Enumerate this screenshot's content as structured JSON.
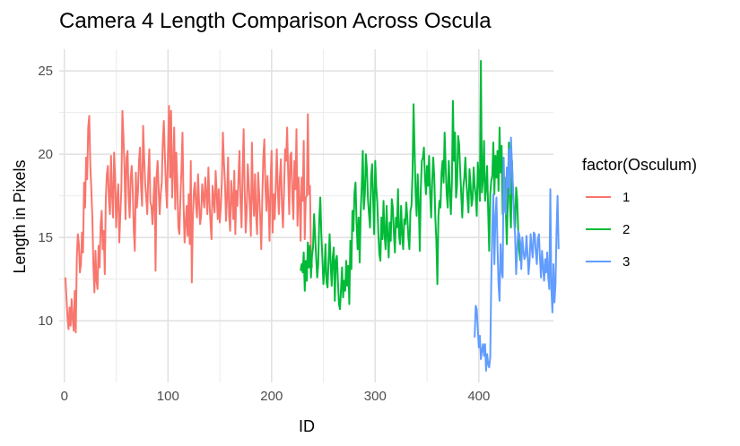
{
  "chart_data": {
    "type": "line",
    "title": "Camera 4 Length Comparison Across Oscula",
    "xlabel": "ID",
    "ylabel": "Length in Pixels",
    "xlim": [
      -5,
      472
    ],
    "ylim": [
      6.3,
      26.3
    ],
    "x_ticks": [
      0,
      100,
      200,
      300,
      400
    ],
    "y_ticks": [
      10,
      15,
      20,
      25
    ],
    "x_tick_labels": [
      "0",
      "100",
      "200",
      "300",
      "400"
    ],
    "y_tick_labels": [
      "10",
      "15",
      "20",
      "25"
    ],
    "grid": true,
    "legend": {
      "title": "factor(Osculum)",
      "position": "right",
      "entries": [
        "1",
        "2",
        "3"
      ]
    },
    "series": [
      {
        "name": "1",
        "color": "#F8766D",
        "x_start": 1,
        "values": [
          12.6,
          11.4,
          10.2,
          9.5,
          10.8,
          9.7,
          11.3,
          10.1,
          9.4,
          11.8,
          9.3,
          13.8,
          15.2,
          14.6,
          12.9,
          13.4,
          15.3,
          14.1,
          18.3,
          16.8,
          19.8,
          18.5,
          21.6,
          22.3,
          19.4,
          17.9,
          16.2,
          13.3,
          11.7,
          14.2,
          12.4,
          11.9,
          14.5,
          13.2,
          15.8,
          16.6,
          14.3,
          15.4,
          12.8,
          17.4,
          18.8,
          19.3,
          17.2,
          16.4,
          19.9,
          17.6,
          16.2,
          20.1,
          18.5,
          15.6,
          17.3,
          18.2,
          14.7,
          16.4,
          17.9,
          22.6,
          21.1,
          19.2,
          16.1,
          19.8,
          20.2,
          17.5,
          16.2,
          18.6,
          19.3,
          17.8,
          15.4,
          14.2,
          18.9,
          16.8,
          17.7,
          19.6,
          20.4,
          18.1,
          16.9,
          21.7,
          19.8,
          18.2,
          17.4,
          16.4,
          18.9,
          20.3,
          17.1,
          16.9,
          15.8,
          17.3,
          18.6,
          13.0,
          18.7,
          19.6,
          17.9,
          16.4,
          17.6,
          18.3,
          20.8,
          22.0,
          19.9,
          18.1,
          16.8,
          20.2,
          22.9,
          18.6,
          22.6,
          17.4,
          19.3,
          21.6,
          16.7,
          20.1,
          18.3,
          15.6,
          15.2,
          17.4,
          19.1,
          21.3,
          17.1,
          14.7,
          15.8,
          16.9,
          15.1,
          17.6,
          14.6,
          19.6,
          12.3,
          16.1,
          17.8,
          18.3,
          17.0,
          16.2,
          18.8,
          17.1,
          15.8,
          16.3,
          18.2,
          17.4,
          16.8,
          18.6,
          17.6,
          16.4,
          19.2,
          17.2,
          15.9,
          14.9,
          18.1,
          17.3,
          16.5,
          19.0,
          17.7,
          16.1,
          17.9,
          15.9,
          16.8,
          18.4,
          21.3,
          19.5,
          18.3,
          16.0,
          17.4,
          19.8,
          16.3,
          15.4,
          18.4,
          17.4,
          16.1,
          19.0,
          15.2,
          17.8,
          16.9,
          18.6,
          20.2,
          17.1,
          15.6,
          18.8,
          21.5,
          17.9,
          15.3,
          16.6,
          19.4,
          18.2,
          16.8,
          15.1,
          20.7,
          17.5,
          16.3,
          18.8,
          16.4,
          15.2,
          18.9,
          17.6,
          16.2,
          14.3,
          17.4,
          19.8,
          20.9,
          18.1,
          16.6,
          18.7,
          17.2,
          14.8,
          18.3,
          20.2,
          15.3,
          17.6,
          16.1,
          18.1,
          20.3,
          17.9,
          16.4,
          18.6,
          19.7,
          16.9,
          15.6,
          17.8,
          20.3,
          19.6,
          21.6,
          18.8,
          16.4,
          19.9,
          20.1,
          17.5,
          16.1,
          19.6,
          17.9,
          21.5,
          15.7,
          18.6,
          17.3,
          14.8,
          18.6,
          17.2,
          20.8,
          14.9,
          17.4,
          17.5,
          22.4,
          17.6,
          18.1,
          14.1,
          13.2
        ]
      },
      {
        "name": "2",
        "color": "#00BA38",
        "x_start": 228,
        "values": [
          13.0,
          13.4,
          12.9,
          14.1,
          11.8,
          13.6,
          12.4,
          14.7,
          13.2,
          14.5,
          12.6,
          13.9,
          14.4,
          16.4,
          15.1,
          13.8,
          12.6,
          13.4,
          16.1,
          17.4,
          15.2,
          13.8,
          12.2,
          13.0,
          14.6,
          12.3,
          12.0,
          13.6,
          15.2,
          13.4,
          12.1,
          13.8,
          14.4,
          11.2,
          13.6,
          13.9,
          12.4,
          11.0,
          10.7,
          11.9,
          13.2,
          11.4,
          12.4,
          11.8,
          13.6,
          12.1,
          13.3,
          11.0,
          14.8,
          13.1,
          16.6,
          15.4,
          17.7,
          18.3,
          15.9,
          14.3,
          16.2,
          13.5,
          16.5,
          18.1,
          20.2,
          16.7,
          17.6,
          20.0,
          19.1,
          17.3,
          16.4,
          15.6,
          18.6,
          19.4,
          17.3,
          15.2,
          19.6,
          18.0,
          17.1,
          15.3,
          14.0,
          13.6,
          16.2,
          14.9,
          17.2,
          15.2,
          14.3,
          16.9,
          15.1,
          13.8,
          15.9,
          14.8,
          17.3,
          16.8,
          15.3,
          14.1,
          16.2,
          15.6,
          17.9,
          15.1,
          14.6,
          16.9,
          15.2,
          14.3,
          16.1,
          15.8,
          17.1,
          16.2,
          15.0,
          14.3,
          16.6,
          16.9,
          18.8,
          23.0,
          20.3,
          17.6,
          16.3,
          18.8,
          17.1,
          14.2,
          17.9,
          19.6,
          19.8,
          20.4,
          18.6,
          17.6,
          19.3,
          18.1,
          19.9,
          17.6,
          16.2,
          18.4,
          19.8,
          18.6,
          16.2,
          14.8,
          12.2,
          16.3,
          17.2,
          16.8,
          18.9,
          19.6,
          18.3,
          21.3,
          19.2,
          17.6,
          16.8,
          19.6,
          17.9,
          16.4,
          18.3,
          23.2,
          19.6,
          21.3,
          17.4,
          18.1,
          21.1,
          20.6,
          19.0,
          17.6,
          16.2,
          18.0,
          18.6,
          19.8,
          18.3,
          17.4,
          16.5,
          19.1,
          18.2,
          16.9,
          17.3,
          19.2,
          18.1,
          17.5,
          16.3,
          19.5,
          18.5,
          17.2,
          25.6,
          17.7,
          18.5,
          20.8,
          17.2,
          18.0,
          19.3,
          16.6,
          14.2,
          17.6,
          18.4,
          18.7,
          20.7,
          17.6,
          19.9,
          18.6,
          20.2,
          17.8,
          21.6,
          18.9,
          20.5,
          16.4,
          17.7,
          18.6,
          16.8,
          14.6,
          17.4,
          20.7,
          17.1,
          15.6,
          19.6,
          17.8,
          16.5,
          15.6,
          18.0,
          17.3,
          15.4,
          14.2,
          13.6
        ]
      },
      {
        "name": "3",
        "color": "#619CFF",
        "x_start": 396,
        "values": [
          9.0,
          10.9,
          10.7,
          9.5,
          8.4,
          9.1,
          7.7,
          8.2,
          8.6,
          7.9,
          8.6,
          7.0,
          8.0,
          7.4,
          7.2,
          7.8,
          12.4,
          15.6,
          17.6,
          13.4,
          16.1,
          17.4,
          14.5,
          12.2,
          11.2,
          14.6,
          13.0,
          12.6,
          19.8,
          16.7,
          16.4,
          19.2,
          18.0,
          20.3,
          17.6,
          21.0,
          19.4,
          17.8,
          16.1,
          15.1,
          12.8,
          14.3,
          15.4,
          15.2,
          14.7,
          13.1,
          15.0,
          14.2,
          13.7,
          13.9,
          15.1,
          14.0,
          12.8,
          13.6,
          15.2,
          14.4,
          13.8,
          15.3,
          15.2,
          14.1,
          13.4,
          14.9,
          15.2,
          13.8,
          12.6,
          14.2,
          13.2,
          12.4,
          13.7,
          12.9,
          14.1,
          12.6,
          11.9,
          17.9,
          12.0,
          10.5,
          13.4,
          11.1,
          12.2,
          15.4,
          17.5,
          14.3
        ]
      }
    ]
  }
}
